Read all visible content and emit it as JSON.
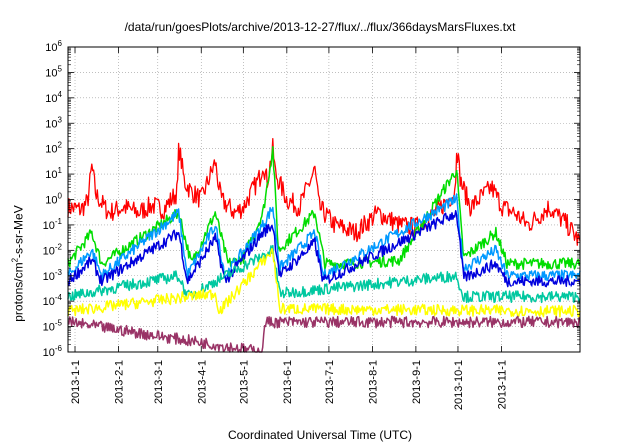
{
  "chart_data": {
    "type": "line",
    "title": "/data/run/goesPlots/archive/2013-12-27/flux/../flux/366daysMarsFluxes.txt",
    "xlabel": "Coordinated Universal Time (UTC)",
    "ylabel": {
      "base": "protons/cm",
      "exp": "2",
      "rest": "-s-sr-MeV"
    },
    "yscale": "log",
    "ylim": [
      1e-06,
      1000000.0
    ],
    "xlim": [
      "2012-12-27",
      "2013-12-27"
    ],
    "grid": true,
    "x_ticks": [
      "2013-1-1",
      "2013-2-1",
      "2013-3-1",
      "2013-4-1",
      "2013-5-1",
      "2013-6-1",
      "2013-7-1",
      "2013-8-1",
      "2013-9-1",
      "2013-10-1",
      "2013-11-1"
    ],
    "y_ticks": [
      {
        "base": "10",
        "exp": "-6"
      },
      {
        "base": "10",
        "exp": "-5"
      },
      {
        "base": "10",
        "exp": "-4"
      },
      {
        "base": "10",
        "exp": "-3"
      },
      {
        "base": "10",
        "exp": "-2"
      },
      {
        "base": "10",
        "exp": "-1"
      },
      {
        "base": "10",
        "exp": "0"
      },
      {
        "base": "10",
        "exp": "1"
      },
      {
        "base": "10",
        "exp": "2"
      },
      {
        "base": "10",
        "exp": "3"
      },
      {
        "base": "10",
        "exp": "4"
      },
      {
        "base": "10",
        "exp": "5"
      },
      {
        "base": "10",
        "exp": "6"
      }
    ],
    "series": [
      {
        "color": "#ff0000",
        "baseline": 0.3,
        "values": [
          [
            "2012-12-27",
            0.5
          ],
          [
            "2013-01-05",
            0.4
          ],
          [
            "2013-01-10",
            0.8
          ],
          [
            "2013-01-13",
            20
          ],
          [
            "2013-01-16",
            1.5
          ],
          [
            "2013-01-25",
            0.3
          ],
          [
            "2013-02-05",
            0.5
          ],
          [
            "2013-02-15",
            0.3
          ],
          [
            "2013-02-25",
            0.6
          ],
          [
            "2013-03-05",
            0.4
          ],
          [
            "2013-03-15",
            2
          ],
          [
            "2013-03-16",
            130
          ],
          [
            "2013-03-20",
            5
          ],
          [
            "2013-03-25",
            2
          ],
          [
            "2013-04-01",
            1
          ],
          [
            "2013-04-11",
            30
          ],
          [
            "2013-04-15",
            1
          ],
          [
            "2013-04-25",
            0.3
          ],
          [
            "2013-05-01",
            0.5
          ],
          [
            "2013-05-13",
            8
          ],
          [
            "2013-05-15",
            30
          ],
          [
            "2013-05-18",
            5
          ],
          [
            "2013-05-22",
            100
          ],
          [
            "2013-05-24",
            10
          ],
          [
            "2013-06-01",
            1
          ],
          [
            "2013-06-10",
            0.5
          ],
          [
            "2013-06-21",
            15
          ],
          [
            "2013-06-24",
            0.5
          ],
          [
            "2013-07-05",
            0.1
          ],
          [
            "2013-07-20",
            0.05
          ],
          [
            "2013-08-05",
            0.3
          ],
          [
            "2013-08-20",
            0.1
          ],
          [
            "2013-09-01",
            0.08
          ],
          [
            "2013-09-15",
            0.3
          ],
          [
            "2013-09-29",
            2
          ],
          [
            "2013-09-30",
            150
          ],
          [
            "2013-10-03",
            5
          ],
          [
            "2013-10-10",
            0.5
          ],
          [
            "2013-10-25",
            3
          ],
          [
            "2013-10-28",
            1.5
          ],
          [
            "2013-11-02",
            0.5
          ],
          [
            "2013-11-10",
            0.3
          ],
          [
            "2013-11-20",
            0.1
          ],
          [
            "2013-12-05",
            0.5
          ],
          [
            "2013-12-18",
            0.1
          ],
          [
            "2013-12-27",
            0.02
          ]
        ]
      },
      {
        "color": "#00dd00",
        "baseline": 0.003,
        "values": [
          [
            "2012-12-27",
            0.003
          ],
          [
            "2013-01-13",
            0.05
          ],
          [
            "2013-01-20",
            0.003
          ],
          [
            "2013-03-16",
            0.3
          ],
          [
            "2013-03-25",
            0.003
          ],
          [
            "2013-04-11",
            0.3
          ],
          [
            "2013-04-20",
            0.003
          ],
          [
            "2013-05-01",
            0.005
          ],
          [
            "2013-05-15",
            0.3
          ],
          [
            "2013-05-22",
            100
          ],
          [
            "2013-05-26",
            0.01
          ],
          [
            "2013-06-21",
            0.3
          ],
          [
            "2013-06-28",
            0.003
          ],
          [
            "2013-07-10",
            0.003
          ],
          [
            "2013-08-20",
            0.004
          ],
          [
            "2013-09-30",
            15
          ],
          [
            "2013-10-05",
            0.005
          ],
          [
            "2013-10-28",
            0.05
          ],
          [
            "2013-11-05",
            0.003
          ],
          [
            "2013-12-27",
            0.003
          ]
        ]
      },
      {
        "color": "#0099ff",
        "baseline": 0.001,
        "values": [
          [
            "2012-12-27",
            0.001
          ],
          [
            "2013-01-13",
            0.01
          ],
          [
            "2013-01-20",
            0.001
          ],
          [
            "2013-03-16",
            0.3
          ],
          [
            "2013-03-22",
            0.001
          ],
          [
            "2013-04-11",
            0.1
          ],
          [
            "2013-04-18",
            0.001
          ],
          [
            "2013-05-15",
            0.1
          ],
          [
            "2013-05-22",
            0.5
          ],
          [
            "2013-05-27",
            0.002
          ],
          [
            "2013-06-21",
            0.05
          ],
          [
            "2013-06-27",
            0.001
          ],
          [
            "2013-09-30",
            1
          ],
          [
            "2013-10-05",
            0.002
          ],
          [
            "2013-10-28",
            0.01
          ],
          [
            "2013-11-05",
            0.001
          ],
          [
            "2013-12-27",
            0.001
          ]
        ]
      },
      {
        "color": "#0000dd",
        "baseline": 0.0006,
        "values": [
          [
            "2012-12-27",
            0.0006
          ],
          [
            "2013-01-13",
            0.004
          ],
          [
            "2013-01-20",
            0.0006
          ],
          [
            "2013-03-16",
            0.05
          ],
          [
            "2013-03-22",
            0.0006
          ],
          [
            "2013-04-11",
            0.03
          ],
          [
            "2013-04-18",
            0.0006
          ],
          [
            "2013-05-15",
            0.05
          ],
          [
            "2013-05-22",
            0.1
          ],
          [
            "2013-05-27",
            0.001
          ],
          [
            "2013-06-21",
            0.02
          ],
          [
            "2013-06-27",
            0.0006
          ],
          [
            "2013-09-30",
            0.3
          ],
          [
            "2013-10-05",
            0.0008
          ],
          [
            "2013-10-28",
            0.003
          ],
          [
            "2013-11-05",
            0.0006
          ],
          [
            "2013-12-27",
            0.0006
          ]
        ]
      },
      {
        "color": "#ffffff",
        "baseline": 0.0003,
        "values": [
          [
            "2012-12-27",
            0.0003
          ],
          [
            "2013-12-27",
            0.0003
          ]
        ]
      },
      {
        "color": "#00c8a0",
        "baseline": 0.00015,
        "values": [
          [
            "2012-12-27",
            0.00015
          ],
          [
            "2013-03-16",
            0.001
          ],
          [
            "2013-03-22",
            0.00015
          ],
          [
            "2013-05-22",
            0.01
          ],
          [
            "2013-05-27",
            0.0002
          ],
          [
            "2013-09-30",
            0.001
          ],
          [
            "2013-10-05",
            0.00015
          ],
          [
            "2013-12-27",
            0.00015
          ]
        ]
      },
      {
        "color": "#ffff00",
        "baseline": 4e-05,
        "values": [
          [
            "2012-12-27",
            4e-05
          ],
          [
            "2013-04-11",
            0.0002
          ],
          [
            "2013-04-14",
            4e-05
          ],
          [
            "2013-05-22",
            0.01
          ],
          [
            "2013-05-27",
            5e-05
          ],
          [
            "2013-12-27",
            4e-05
          ]
        ]
      },
      {
        "color": "#993366",
        "baseline": 1.5e-05,
        "values": [
          [
            "2012-12-27",
            1.5e-05
          ],
          [
            "2013-05-15",
            1e-06
          ],
          [
            "2013-05-16",
            1.5e-05
          ],
          [
            "2013-12-27",
            1.5e-05
          ]
        ]
      }
    ]
  }
}
